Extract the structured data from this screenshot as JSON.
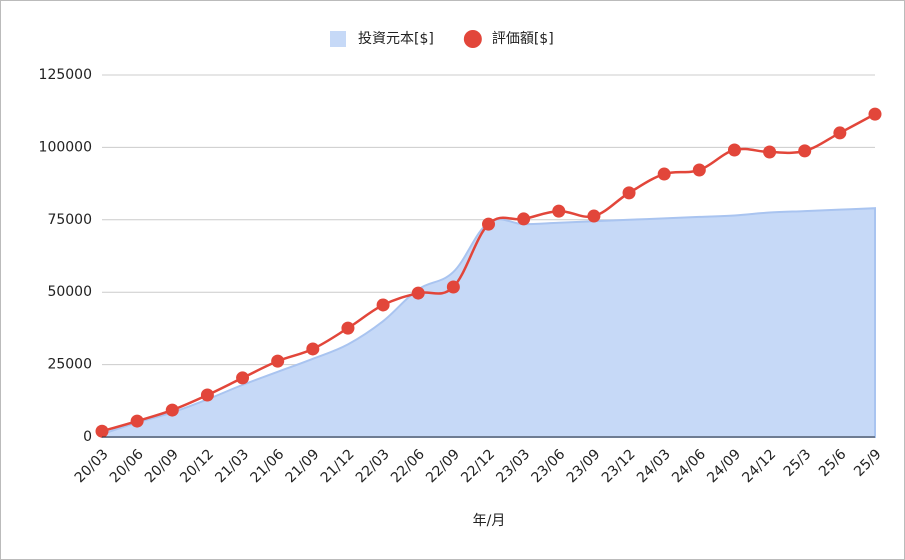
{
  "chart_data": {
    "type": "combo",
    "x_label": "年/月",
    "categories": [
      "20/03",
      "20/06",
      "20/09",
      "20/12",
      "21/03",
      "21/06",
      "21/09",
      "21/12",
      "22/03",
      "22/06",
      "22/09",
      "22/12",
      "23/03",
      "23/06",
      "23/09",
      "23/12",
      "24/03",
      "24/06",
      "24/09",
      "24/12",
      "25/3",
      "25/6",
      "25/9"
    ],
    "series": [
      {
        "name": "投資元本[$]",
        "type": "area",
        "color": "#c6d9f7",
        "values": [
          1000,
          5000,
          8500,
          13000,
          18000,
          22500,
          27000,
          32000,
          40000,
          51000,
          57000,
          74000,
          73500,
          74000,
          74500,
          75000,
          75500,
          76000,
          76500,
          77500,
          78000,
          78500,
          79000
        ]
      },
      {
        "name": "評価額[$]",
        "type": "line",
        "color": "#e2463a",
        "values": [
          2000,
          5500,
          9300,
          14500,
          20400,
          26200,
          30400,
          37600,
          45600,
          49700,
          51800,
          73500,
          75300,
          78000,
          76300,
          84300,
          90800,
          92200,
          99100,
          98400,
          98800,
          105000,
          111500
        ]
      }
    ],
    "ylim": [
      0,
      125000
    ],
    "yticks": [
      0,
      25000,
      50000,
      75000,
      100000,
      125000
    ],
    "grid": true,
    "legend": "top"
  }
}
